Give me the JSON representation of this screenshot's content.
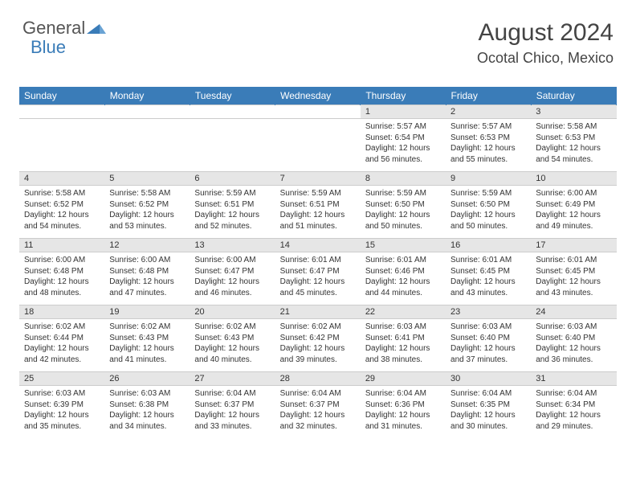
{
  "logo": {
    "text1": "General",
    "text2": "Blue"
  },
  "title": "August 2024",
  "location": "Ocotal Chico, Mexico",
  "colors": {
    "header_bg": "#3a7cb8",
    "header_text": "#ffffff",
    "daynum_bg": "#e6e6e6",
    "cell_bg": "#ffffff",
    "border": "#cccccc",
    "body_text": "#333333",
    "title_text": "#444444"
  },
  "days": [
    "Sunday",
    "Monday",
    "Tuesday",
    "Wednesday",
    "Thursday",
    "Friday",
    "Saturday"
  ],
  "weeks": [
    {
      "nums": [
        "",
        "",
        "",
        "",
        "1",
        "2",
        "3"
      ],
      "details": [
        "",
        "",
        "",
        "",
        "Sunrise: 5:57 AM\nSunset: 6:54 PM\nDaylight: 12 hours and 56 minutes.",
        "Sunrise: 5:57 AM\nSunset: 6:53 PM\nDaylight: 12 hours and 55 minutes.",
        "Sunrise: 5:58 AM\nSunset: 6:53 PM\nDaylight: 12 hours and 54 minutes."
      ]
    },
    {
      "nums": [
        "4",
        "5",
        "6",
        "7",
        "8",
        "9",
        "10"
      ],
      "details": [
        "Sunrise: 5:58 AM\nSunset: 6:52 PM\nDaylight: 12 hours and 54 minutes.",
        "Sunrise: 5:58 AM\nSunset: 6:52 PM\nDaylight: 12 hours and 53 minutes.",
        "Sunrise: 5:59 AM\nSunset: 6:51 PM\nDaylight: 12 hours and 52 minutes.",
        "Sunrise: 5:59 AM\nSunset: 6:51 PM\nDaylight: 12 hours and 51 minutes.",
        "Sunrise: 5:59 AM\nSunset: 6:50 PM\nDaylight: 12 hours and 50 minutes.",
        "Sunrise: 5:59 AM\nSunset: 6:50 PM\nDaylight: 12 hours and 50 minutes.",
        "Sunrise: 6:00 AM\nSunset: 6:49 PM\nDaylight: 12 hours and 49 minutes."
      ]
    },
    {
      "nums": [
        "11",
        "12",
        "13",
        "14",
        "15",
        "16",
        "17"
      ],
      "details": [
        "Sunrise: 6:00 AM\nSunset: 6:48 PM\nDaylight: 12 hours and 48 minutes.",
        "Sunrise: 6:00 AM\nSunset: 6:48 PM\nDaylight: 12 hours and 47 minutes.",
        "Sunrise: 6:00 AM\nSunset: 6:47 PM\nDaylight: 12 hours and 46 minutes.",
        "Sunrise: 6:01 AM\nSunset: 6:47 PM\nDaylight: 12 hours and 45 minutes.",
        "Sunrise: 6:01 AM\nSunset: 6:46 PM\nDaylight: 12 hours and 44 minutes.",
        "Sunrise: 6:01 AM\nSunset: 6:45 PM\nDaylight: 12 hours and 43 minutes.",
        "Sunrise: 6:01 AM\nSunset: 6:45 PM\nDaylight: 12 hours and 43 minutes."
      ]
    },
    {
      "nums": [
        "18",
        "19",
        "20",
        "21",
        "22",
        "23",
        "24"
      ],
      "details": [
        "Sunrise: 6:02 AM\nSunset: 6:44 PM\nDaylight: 12 hours and 42 minutes.",
        "Sunrise: 6:02 AM\nSunset: 6:43 PM\nDaylight: 12 hours and 41 minutes.",
        "Sunrise: 6:02 AM\nSunset: 6:43 PM\nDaylight: 12 hours and 40 minutes.",
        "Sunrise: 6:02 AM\nSunset: 6:42 PM\nDaylight: 12 hours and 39 minutes.",
        "Sunrise: 6:03 AM\nSunset: 6:41 PM\nDaylight: 12 hours and 38 minutes.",
        "Sunrise: 6:03 AM\nSunset: 6:40 PM\nDaylight: 12 hours and 37 minutes.",
        "Sunrise: 6:03 AM\nSunset: 6:40 PM\nDaylight: 12 hours and 36 minutes."
      ]
    },
    {
      "nums": [
        "25",
        "26",
        "27",
        "28",
        "29",
        "30",
        "31"
      ],
      "details": [
        "Sunrise: 6:03 AM\nSunset: 6:39 PM\nDaylight: 12 hours and 35 minutes.",
        "Sunrise: 6:03 AM\nSunset: 6:38 PM\nDaylight: 12 hours and 34 minutes.",
        "Sunrise: 6:04 AM\nSunset: 6:37 PM\nDaylight: 12 hours and 33 minutes.",
        "Sunrise: 6:04 AM\nSunset: 6:37 PM\nDaylight: 12 hours and 32 minutes.",
        "Sunrise: 6:04 AM\nSunset: 6:36 PM\nDaylight: 12 hours and 31 minutes.",
        "Sunrise: 6:04 AM\nSunset: 6:35 PM\nDaylight: 12 hours and 30 minutes.",
        "Sunrise: 6:04 AM\nSunset: 6:34 PM\nDaylight: 12 hours and 29 minutes."
      ]
    }
  ]
}
